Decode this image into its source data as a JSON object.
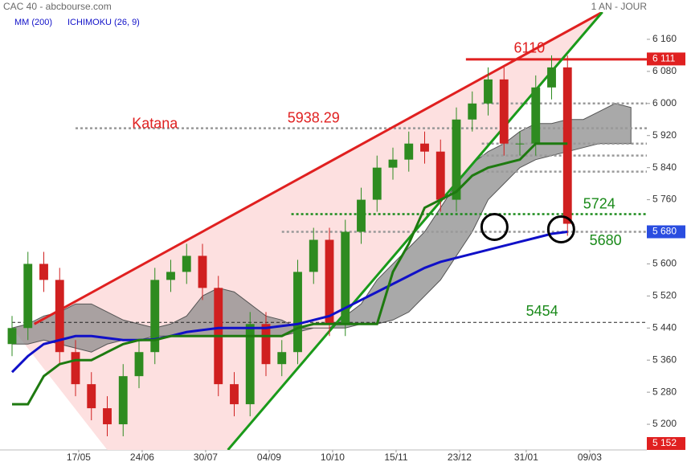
{
  "chart_data": {
    "type": "candlestick",
    "title": "CAC 40 - abcbourse.com",
    "subtitle": "1 AN - JOUR",
    "x": [
      0,
      5,
      10,
      15,
      20,
      25,
      30,
      35,
      40,
      45,
      50,
      55,
      60,
      65,
      70,
      75,
      80,
      85,
      90,
      95,
      100,
      105,
      110,
      115,
      120,
      125,
      130,
      135,
      140,
      145,
      150,
      155,
      160,
      165,
      170,
      175
    ],
    "open": [
      5400,
      5440,
      5600,
      5560,
      5380,
      5300,
      5240,
      5200,
      5320,
      5380,
      5560,
      5580,
      5620,
      5540,
      5300,
      5250,
      5450,
      5350,
      5380,
      5580,
      5660,
      5450,
      5680,
      5760,
      5840,
      5860,
      5900,
      5880,
      5760,
      5960,
      6000,
      6060,
      5900,
      5900,
      6040,
      6090
    ],
    "high": [
      5470,
      5630,
      5630,
      5590,
      5410,
      5330,
      5270,
      5350,
      5410,
      5590,
      5610,
      5650,
      5650,
      5570,
      5330,
      5480,
      5480,
      5410,
      5610,
      5690,
      5690,
      5710,
      5790,
      5870,
      5890,
      5930,
      5930,
      5910,
      5990,
      6030,
      6090,
      6090,
      5930,
      6070,
      6120,
      6120
    ],
    "low": [
      5370,
      5410,
      5530,
      5350,
      5270,
      5210,
      5170,
      5170,
      5290,
      5350,
      5530,
      5550,
      5510,
      5270,
      5220,
      5220,
      5320,
      5320,
      5350,
      5550,
      5420,
      5420,
      5650,
      5730,
      5810,
      5830,
      5850,
      5730,
      5730,
      5930,
      5970,
      5870,
      5870,
      5870,
      6010,
      5670
    ],
    "close": [
      5440,
      5600,
      5560,
      5380,
      5300,
      5240,
      5200,
      5320,
      5380,
      5560,
      5580,
      5620,
      5540,
      5300,
      5250,
      5450,
      5350,
      5380,
      5580,
      5660,
      5450,
      5680,
      5760,
      5840,
      5860,
      5900,
      5880,
      5760,
      5960,
      6000,
      6060,
      5900,
      5900,
      6040,
      6090,
      5700
    ],
    "up_color": "#2e8b20",
    "down_color": "#d02020",
    "xlim": [
      0,
      200
    ],
    "xticks": [
      {
        "value": 21,
        "label": "17/05"
      },
      {
        "value": 41,
        "label": "24/06"
      },
      {
        "value": 61,
        "label": "30/07"
      },
      {
        "value": 81,
        "label": "04/09"
      },
      {
        "value": 101,
        "label": "10/10"
      },
      {
        "value": 121,
        "label": "15/11"
      },
      {
        "value": 141,
        "label": "23/12"
      },
      {
        "value": 162,
        "label": "31/01"
      },
      {
        "value": 182,
        "label": "09/03"
      }
    ],
    "ylim": [
      5136,
      6228
    ],
    "yticks": [
      {
        "value": 5200,
        "label": "5 200"
      },
      {
        "value": 5280,
        "label": "5 280"
      },
      {
        "value": 5360,
        "label": "5 360"
      },
      {
        "value": 5440,
        "label": "5 440"
      },
      {
        "value": 5520,
        "label": "5 520"
      },
      {
        "value": 5600,
        "label": "5 600"
      },
      {
        "value": 5680,
        "label": "5 680"
      },
      {
        "value": 5760,
        "label": "5 760"
      },
      {
        "value": 5840,
        "label": "5 840"
      },
      {
        "value": 5920,
        "label": "5 920"
      },
      {
        "value": 6000,
        "label": "6 000"
      },
      {
        "value": 6080,
        "label": "6 080"
      },
      {
        "value": 6160,
        "label": "6 160"
      }
    ],
    "series": [
      {
        "name": "MM (200)",
        "color": "#1010c8",
        "values": [
          5330,
          5370,
          5400,
          5410,
          5420,
          5420,
          5415,
          5410,
          5410,
          5412,
          5420,
          5430,
          5435,
          5440,
          5440,
          5440,
          5440,
          5445,
          5450,
          5460,
          5470,
          5490,
          5510,
          5530,
          5550,
          5570,
          5590,
          5605,
          5615,
          5625,
          5635,
          5645,
          5655,
          5665,
          5675,
          5680
        ]
      },
      {
        "name": "ICHIMOKU (26, 9)",
        "color": "#1e7a10",
        "values": [
          5250,
          5250,
          5320,
          5350,
          5360,
          5360,
          5380,
          5400,
          5410,
          5410,
          5420,
          5420,
          5420,
          5420,
          5420,
          5420,
          5420,
          5420,
          5440,
          5450,
          5450,
          5450,
          5450,
          5450,
          5580,
          5650,
          5740,
          5760,
          5780,
          5820,
          5840,
          5850,
          5860,
          5900,
          5900,
          5900
        ]
      }
    ],
    "cloud": {
      "color": "#8c8c8c",
      "x": [
        0,
        5,
        10,
        15,
        20,
        25,
        30,
        35,
        40,
        45,
        50,
        55,
        60,
        65,
        70,
        75,
        80,
        85,
        90,
        95,
        100,
        105,
        110,
        115,
        120,
        125,
        130,
        135,
        140,
        145,
        150,
        155,
        160,
        165,
        170,
        175,
        180,
        185,
        190,
        195
      ],
      "upper": [
        5440,
        5450,
        5470,
        5480,
        5500,
        5500,
        5480,
        5460,
        5450,
        5440,
        5450,
        5470,
        5520,
        5540,
        5530,
        5500,
        5470,
        5460,
        5440,
        5440,
        5440,
        5470,
        5500,
        5560,
        5600,
        5640,
        5680,
        5740,
        5800,
        5850,
        5880,
        5900,
        5930,
        5950,
        5950,
        5960,
        5960,
        5980,
        6000,
        5990
      ],
      "lower": [
        5400,
        5400,
        5410,
        5400,
        5390,
        5380,
        5400,
        5410,
        5410,
        5420,
        5420,
        5420,
        5420,
        5420,
        5420,
        5420,
        5420,
        5420,
        5430,
        5440,
        5440,
        5440,
        5450,
        5450,
        5460,
        5480,
        5520,
        5560,
        5620,
        5680,
        5760,
        5800,
        5840,
        5860,
        5870,
        5880,
        5890,
        5900,
        5900,
        5900
      ]
    },
    "levels": [
      {
        "value": 6110,
        "color": "#e02020",
        "dash": "solid",
        "from": 143,
        "to": 200
      },
      {
        "value": 5938.29,
        "color": "#999999",
        "dash": "dotted",
        "from": 20,
        "to": 200
      },
      {
        "value": 5724,
        "color": "#1a8a1a",
        "dash": "dotted",
        "from": 88,
        "to": 200
      },
      {
        "value": 5680,
        "color": "#999999",
        "dash": "dotted",
        "from": 85,
        "to": 200
      },
      {
        "value": 5454,
        "color": "#222222",
        "dash": "dashed",
        "from": 0,
        "to": 200
      }
    ],
    "level_label_colors": [
      "#e02020",
      "#e02020",
      "#1a8a1a",
      "#1a8a1a",
      "#1a8a1a"
    ],
    "guides": [
      6000,
      5900,
      5870,
      5830
    ],
    "guide_color": "#999999",
    "trendlines": [
      {
        "color": "#e02020",
        "start": [
          7,
          5450
        ],
        "end": [
          186,
          6228
        ]
      },
      {
        "color": "#1a9a1a",
        "start": [
          68,
          5136
        ],
        "end": [
          186,
          6228
        ]
      }
    ],
    "annotations": [
      {
        "text": "Katana",
        "x": 45,
        "y": 5948,
        "color": "#e02020"
      }
    ],
    "circles": [
      {
        "x": 152,
        "y": 5692
      },
      {
        "x": 173,
        "y": 5686
      }
    ],
    "badges": [
      {
        "value": 6111,
        "label": "6 111",
        "color": "#e02020"
      },
      {
        "value": 5680,
        "label": "5 680",
        "color": "#2a4de0"
      },
      {
        "value": 5152,
        "label": "5 152",
        "color": "#e02020"
      }
    ]
  }
}
